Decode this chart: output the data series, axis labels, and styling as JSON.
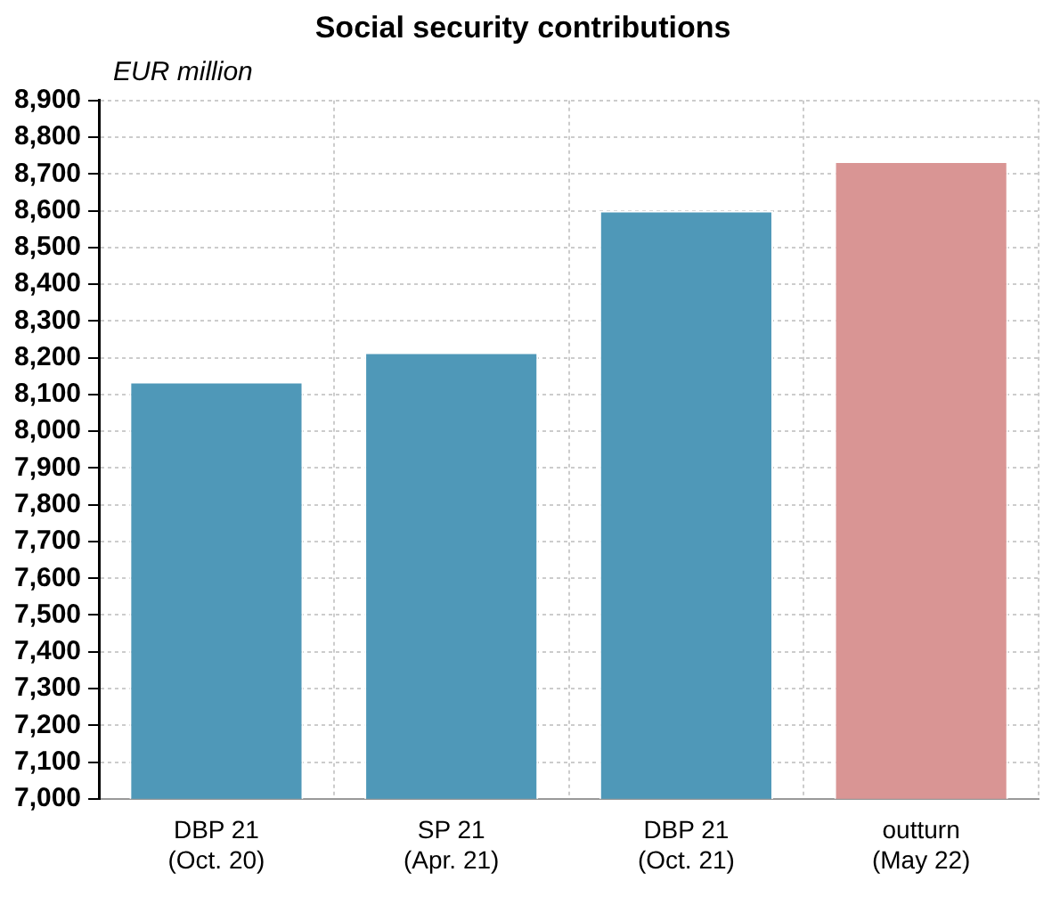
{
  "chart_data": {
    "type": "bar",
    "title": "Social security contributions",
    "ylabel": "EUR million",
    "categories": [
      "DBP 21\n(Oct. 20)",
      "SP 21\n(Apr. 21)",
      "DBP 21\n(Oct. 21)",
      "outturn\n(May 22)"
    ],
    "values": [
      8135,
      8215,
      8600,
      8735
    ],
    "colors": [
      "#4f98b8",
      "#4f98b8",
      "#4f98b8",
      "#d99594"
    ],
    "ylim": [
      7000,
      8900
    ],
    "yticks": [
      {
        "value": 7000,
        "label": "7,000"
      },
      {
        "value": 7100,
        "label": "7,100"
      },
      {
        "value": 7200,
        "label": "7,200"
      },
      {
        "value": 7300,
        "label": "7,300"
      },
      {
        "value": 7400,
        "label": "7,400"
      },
      {
        "value": 7500,
        "label": "7,500"
      },
      {
        "value": 7600,
        "label": "7,600"
      },
      {
        "value": 7700,
        "label": "7,700"
      },
      {
        "value": 7800,
        "label": "7,800"
      },
      {
        "value": 7900,
        "label": "7,900"
      },
      {
        "value": 8000,
        "label": "8,000"
      },
      {
        "value": 8100,
        "label": "8,100"
      },
      {
        "value": 8200,
        "label": "8,200"
      },
      {
        "value": 8300,
        "label": "8,300"
      },
      {
        "value": 8400,
        "label": "8,400"
      },
      {
        "value": 8500,
        "label": "8,500"
      },
      {
        "value": 8600,
        "label": "8,600"
      },
      {
        "value": 8700,
        "label": "8,700"
      },
      {
        "value": 8800,
        "label": "8,800"
      },
      {
        "value": 8900,
        "label": "8,900"
      }
    ],
    "grid": true
  }
}
